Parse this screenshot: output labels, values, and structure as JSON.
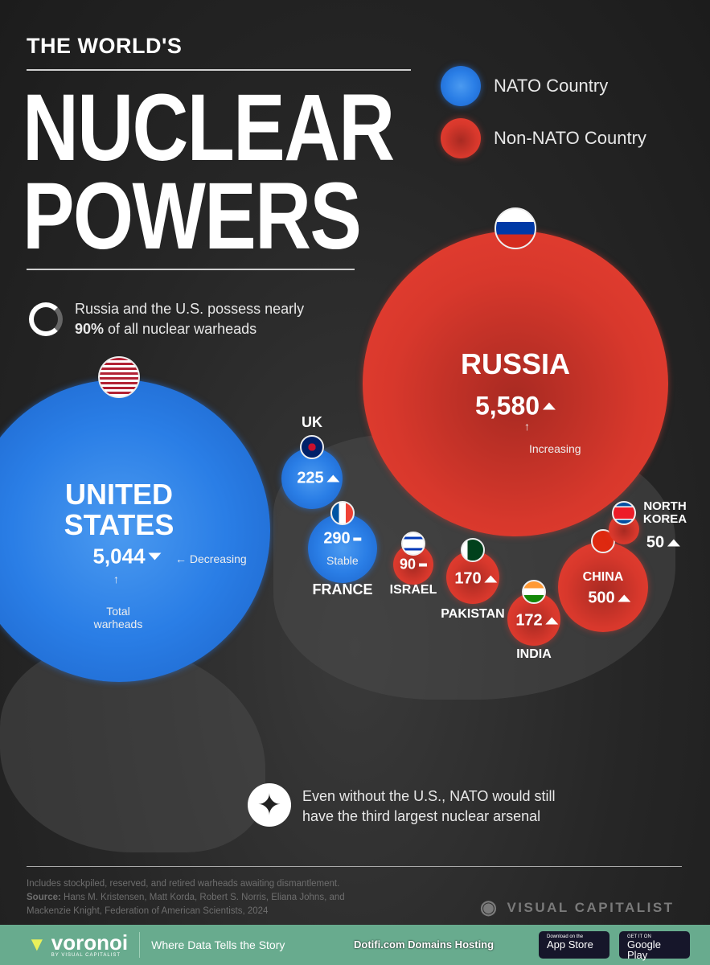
{
  "header": {
    "pretitle": "THE WORLD'S",
    "title_line1": "NUCLEAR",
    "title_line2": "POWERS"
  },
  "legend": [
    {
      "label": "NATO Country",
      "color": "#2a7ee6"
    },
    {
      "label": "Non-NATO Country",
      "color": "#d8382c"
    }
  ],
  "callout_top": {
    "line1": "Russia and the U.S. possess nearly",
    "highlight": "90%",
    "line2": " of all nuclear warheads"
  },
  "callout_bottom": {
    "icon": "nato-compass-icon",
    "line1": "Even without the U.S., NATO would still",
    "line2": "have the third largest nuclear arsenal"
  },
  "chart_data": {
    "type": "bubble",
    "unit": "Total warheads",
    "series": [
      {
        "country": "UNITED STATES",
        "value": 5044,
        "value_label": "5,044",
        "trend": "decreasing",
        "group": "NATO",
        "flag": "us-flag"
      },
      {
        "country": "RUSSIA",
        "value": 5580,
        "value_label": "5,580",
        "trend": "increasing",
        "group": "Non-NATO",
        "flag": "russia-flag"
      },
      {
        "country": "UK",
        "value": 225,
        "value_label": "225",
        "trend": "increasing",
        "group": "NATO",
        "flag": "uk-flag"
      },
      {
        "country": "FRANCE",
        "value": 290,
        "value_label": "290",
        "trend": "stable",
        "group": "NATO",
        "flag": "france-flag"
      },
      {
        "country": "ISRAEL",
        "value": 90,
        "value_label": "90",
        "trend": "stable",
        "group": "Non-NATO",
        "flag": "israel-flag"
      },
      {
        "country": "PAKISTAN",
        "value": 170,
        "value_label": "170",
        "trend": "increasing",
        "group": "Non-NATO",
        "flag": "pakistan-flag"
      },
      {
        "country": "INDIA",
        "value": 172,
        "value_label": "172",
        "trend": "increasing",
        "group": "Non-NATO",
        "flag": "india-flag"
      },
      {
        "country": "CHINA",
        "value": 500,
        "value_label": "500",
        "trend": "increasing",
        "group": "Non-NATO",
        "flag": "china-flag"
      },
      {
        "country": "NORTH KOREA",
        "value": 50,
        "value_label": "50",
        "trend": "increasing",
        "group": "Non-NATO",
        "flag": "north-korea-flag"
      }
    ],
    "annotations": {
      "decreasing": "Decreasing",
      "increasing": "Increasing",
      "stable": "Stable",
      "total": "Total warheads"
    }
  },
  "footer": {
    "note": "Includes stockpiled, reserved, and retired warheads awaiting dismantlement.",
    "source_label": "Source:",
    "source_text": " Hans M. Kristensen, Matt Korda, Robert S. Norris, Eliana Johns, and",
    "source_text2": "Mackenzie Knight, Federation of American Scientists, 2024",
    "publisher": "VISUAL CAPITALIST"
  },
  "bottom_bar": {
    "brand": "voronoi",
    "brand_sub": "BY VISUAL CAPITALIST",
    "tagline": "Where Data Tells the Story",
    "app_store_small": "Download on the",
    "app_store": "App Store",
    "google_small": "GET IT ON",
    "google": "Google Play",
    "watermark": "Dotifi.com Domains Hosting",
    "color": "#68ab8e"
  }
}
